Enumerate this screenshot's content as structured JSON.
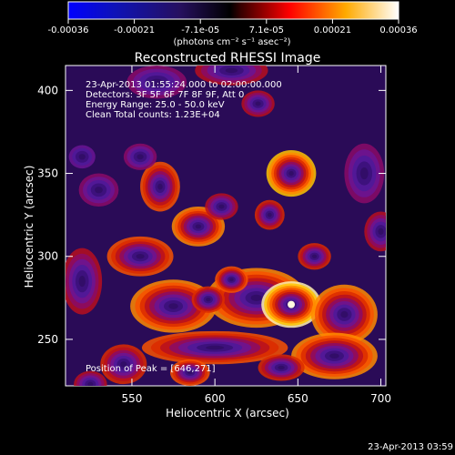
{
  "chart_data": {
    "type": "heatmap",
    "title": "Reconstructed RHESSI Image",
    "xlabel": "Heliocentric X (arcsec)",
    "ylabel": "Heliocentric Y (arcsec)",
    "xlim": [
      510,
      703
    ],
    "ylim": [
      222,
      415
    ],
    "x_ticks": [
      550,
      600,
      650,
      700
    ],
    "y_ticks": [
      250,
      300,
      350,
      400
    ],
    "colorbar": {
      "tick_values": [
        -0.00036,
        -0.00021,
        -7.1e-05,
        7.1e-05,
        0.00021,
        0.00036
      ],
      "tick_labels": [
        "-0.00036",
        "-0.00021",
        "-7.1e-05",
        "7.1e-05",
        "0.00021",
        "0.00036"
      ],
      "unit_label": "(photons cm⁻² s⁻¹ asec⁻²)"
    },
    "overlay_text": {
      "time_range": "23-Apr-2013 01:55:24.000 to 02:00:00.000",
      "detectors": "Detectors: 3F 5F 6F 7F 8F 9F, Att 0",
      "energy_range": "Energy Range: 25.0 - 50.0 keV",
      "clean_counts": "Clean     Total counts: 1.23E+04",
      "peak_position": "Position of Peak = [646,271]"
    },
    "peak": {
      "x": 646,
      "y": 271
    },
    "footer_timestamp": "23-Apr-2013 03:59"
  }
}
